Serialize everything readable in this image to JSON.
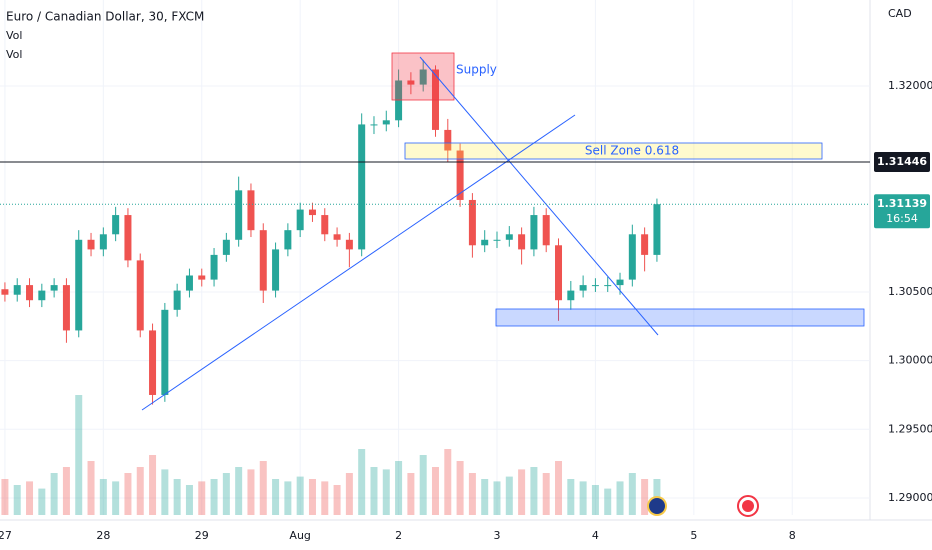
{
  "chart_data": {
    "type": "candlestick",
    "title": "Euro / Canadian Dollar, 30, FXCM",
    "indicators": [
      "Vol",
      "Vol"
    ],
    "currency": "CAD",
    "x": [
      0,
      0.125,
      0.25,
      0.375,
      0.5,
      0.625,
      0.75,
      0.875,
      1,
      1.125,
      1.25,
      1.375,
      1.5,
      1.625,
      1.75,
      1.875,
      2,
      2.125,
      2.25,
      2.375,
      2.5,
      2.625,
      2.75,
      2.875,
      3,
      3.125,
      3.25,
      3.375,
      3.5,
      3.625,
      3.75,
      3.875,
      4,
      4.125,
      4.25,
      4.375,
      4.5,
      4.625,
      4.75,
      4.875,
      5,
      5.125,
      5.25,
      5.375,
      5.5,
      5.625,
      5.75,
      5.875,
      6,
      6.125,
      6.25,
      6.375,
      6.5,
      6.625
    ],
    "open": [
      1.3052,
      1.3048,
      1.3055,
      1.3044,
      1.3051,
      1.3055,
      1.3022,
      1.3088,
      1.3081,
      1.3092,
      1.3106,
      1.3073,
      1.3022,
      1.2975,
      1.3037,
      1.3051,
      1.3062,
      1.3059,
      1.3077,
      1.3088,
      1.3124,
      1.3095,
      1.3051,
      1.3081,
      1.3095,
      1.311,
      1.3106,
      1.3092,
      1.3088,
      1.3081,
      1.3172,
      1.3172,
      1.3175,
      1.3204,
      1.3201,
      1.3212,
      1.3168,
      1.3153,
      1.3117,
      1.3084,
      1.3088,
      1.3088,
      1.3092,
      1.3081,
      1.3106,
      1.3084,
      1.3044,
      1.3051,
      1.3055,
      1.3055,
      1.3055,
      1.3059,
      1.3092,
      1.3077
    ],
    "high": [
      1.3057,
      1.306,
      1.306,
      1.3056,
      1.306,
      1.306,
      1.3095,
      1.3093,
      1.3097,
      1.3112,
      1.3111,
      1.3078,
      1.3027,
      1.3042,
      1.3056,
      1.3067,
      1.3067,
      1.3082,
      1.3093,
      1.3134,
      1.3129,
      1.31,
      1.3086,
      1.31,
      1.3115,
      1.3115,
      1.3111,
      1.3097,
      1.3093,
      1.318,
      1.3178,
      1.3182,
      1.3212,
      1.321,
      1.3219,
      1.3215,
      1.3176,
      1.3158,
      1.3122,
      1.3095,
      1.3094,
      1.3098,
      1.3097,
      1.3112,
      1.3111,
      1.3089,
      1.3058,
      1.3062,
      1.306,
      1.3061,
      1.3064,
      1.3099,
      1.3097,
      1.3118
    ],
    "low": [
      1.3043,
      1.3043,
      1.3039,
      1.3039,
      1.3046,
      1.3013,
      1.3017,
      1.3076,
      1.3076,
      1.3087,
      1.3068,
      1.3017,
      1.2968,
      1.297,
      1.3032,
      1.3046,
      1.3054,
      1.3054,
      1.3072,
      1.3083,
      1.309,
      1.3042,
      1.3046,
      1.3076,
      1.309,
      1.3101,
      1.3087,
      1.3083,
      1.3068,
      1.3076,
      1.3165,
      1.3167,
      1.317,
      1.3194,
      1.3196,
      1.3163,
      1.3145,
      1.3112,
      1.3075,
      1.3079,
      1.3082,
      1.3083,
      1.307,
      1.3076,
      1.3079,
      1.3029,
      1.3037,
      1.3046,
      1.305,
      1.305,
      1.3048,
      1.3054,
      1.3065,
      1.3072
    ],
    "close": [
      1.3048,
      1.3055,
      1.3044,
      1.3051,
      1.3055,
      1.3022,
      1.3088,
      1.3081,
      1.3092,
      1.3106,
      1.3073,
      1.3022,
      1.2975,
      1.3037,
      1.3051,
      1.3062,
      1.3059,
      1.3077,
      1.3088,
      1.3124,
      1.3095,
      1.3051,
      1.3081,
      1.3095,
      1.311,
      1.3106,
      1.3092,
      1.3088,
      1.3081,
      1.3172,
      1.3172,
      1.3175,
      1.3204,
      1.3201,
      1.3212,
      1.3168,
      1.3153,
      1.3117,
      1.3084,
      1.3088,
      1.3088,
      1.3092,
      1.3081,
      1.3106,
      1.3084,
      1.3044,
      1.3051,
      1.3055,
      1.3055,
      1.3055,
      1.3059,
      1.3092,
      1.3077,
      1.31139
    ],
    "volume": [
      30,
      25,
      28,
      22,
      35,
      40,
      100,
      45,
      30,
      28,
      35,
      40,
      50,
      38,
      30,
      25,
      28,
      30,
      35,
      40,
      38,
      45,
      30,
      28,
      32,
      30,
      28,
      25,
      35,
      55,
      40,
      38,
      45,
      35,
      50,
      40,
      55,
      45,
      35,
      30,
      28,
      32,
      38,
      40,
      35,
      45,
      30,
      28,
      25,
      22,
      28,
      35,
      30,
      30
    ],
    "up_color": "#26a69a",
    "down_color": "#ef5350",
    "xlim": [
      -0.05,
      8.79
    ],
    "xticks": [
      {
        "value": 0,
        "label": "27"
      },
      {
        "value": 1,
        "label": "28"
      },
      {
        "value": 2,
        "label": "29"
      },
      {
        "value": 3,
        "label": "Aug"
      },
      {
        "value": 4,
        "label": "2"
      },
      {
        "value": 5,
        "label": "3"
      },
      {
        "value": 6,
        "label": "4"
      },
      {
        "value": 7,
        "label": "5"
      },
      {
        "value": 8,
        "label": "8"
      }
    ],
    "ylim": [
      1.28876,
      1.32626
    ],
    "yticks": [
      {
        "value": 1.32,
        "label": "1.32000"
      },
      {
        "value": 1.305,
        "label": "1.30500"
      },
      {
        "value": 1.3,
        "label": "1.30000"
      },
      {
        "value": 1.295,
        "label": "1.29500"
      },
      {
        "value": 1.29,
        "label": "1.29000"
      }
    ],
    "horizontal_line": {
      "value": 1.31446,
      "label": "1.31446"
    },
    "last_price": {
      "value": 1.31139,
      "label": "1.31139"
    },
    "countdown": "16:54",
    "annotations": [
      "Supply",
      "Sell Zone 0.618"
    ]
  }
}
